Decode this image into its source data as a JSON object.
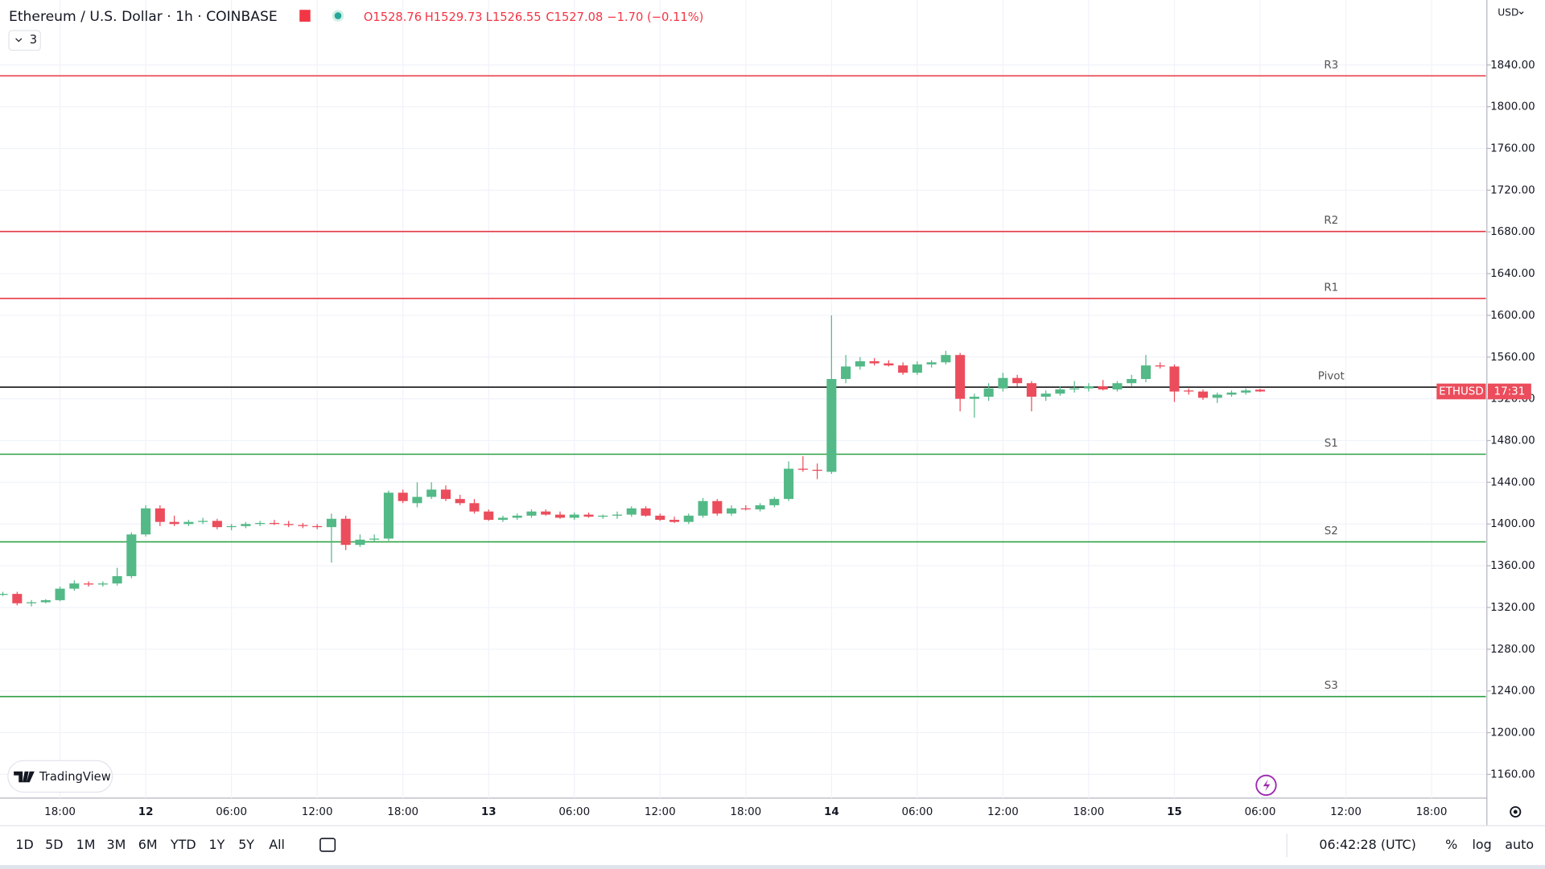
{
  "header": {
    "title": "Ethereum / U.S. Dollar · 1h · COINBASE",
    "ohlc": [
      "O1528.76",
      "H1529.73",
      "L1526.55",
      "C1527.08",
      "−1.70 (−0.11%)"
    ],
    "indicators": "3",
    "currency": "USD"
  },
  "chart_data": {
    "type": "candlestick",
    "up_color": "#53b987",
    "down_color": "#eb4d5c",
    "grid": true,
    "open": [
      1333,
      1333,
      1324,
      1325,
      1327,
      1338,
      1343,
      1342,
      1343,
      1350,
      1390,
      1415,
      1402,
      1400,
      1402,
      1403,
      1397,
      1398,
      1400,
      1401,
      1400,
      1399,
      1398,
      1397,
      1405,
      1380,
      1385,
      1386,
      1430,
      1420,
      1426,
      1433,
      1424,
      1420,
      1412,
      1404,
      1406,
      1408,
      1412,
      1409,
      1406,
      1409,
      1407,
      1408,
      1409,
      1415,
      1408,
      1404,
      1402,
      1408,
      1422,
      1410,
      1415,
      1414,
      1418,
      1424,
      1453,
      1452,
      1450,
      1539,
      1551,
      1556,
      1554,
      1552,
      1545,
      1553,
      1555,
      1562,
      1520,
      1522,
      1530,
      1540,
      1535,
      1522,
      1525,
      1529,
      1530,
      1532,
      1529,
      1535,
      1539,
      1552,
      1551,
      1528,
      1527,
      1521,
      1524,
      1526,
      1528.76
    ],
    "high": [
      1335,
      1335,
      1327,
      1328,
      1340,
      1346,
      1345,
      1345,
      1358,
      1392,
      1418,
      1418,
      1408,
      1404,
      1406,
      1405,
      1400,
      1402,
      1403,
      1404,
      1403,
      1401,
      1400,
      1410,
      1408,
      1390,
      1390,
      1432,
      1433,
      1440,
      1440,
      1437,
      1428,
      1424,
      1414,
      1408,
      1410,
      1414,
      1414,
      1412,
      1411,
      1411,
      1409,
      1412,
      1417,
      1417,
      1410,
      1407,
      1410,
      1425,
      1424,
      1418,
      1418,
      1420,
      1426,
      1460,
      1465,
      1458,
      1600,
      1562,
      1560,
      1559,
      1557,
      1555,
      1556,
      1557,
      1566,
      1564,
      1525,
      1535,
      1545,
      1543,
      1537,
      1528,
      1532,
      1537,
      1535,
      1538,
      1537,
      1543,
      1562,
      1555,
      1553,
      1530,
      1529,
      1526,
      1528,
      1530,
      1529.73
    ],
    "low": [
      1331,
      1322,
      1321,
      1324,
      1326,
      1336,
      1340,
      1340,
      1341,
      1348,
      1388,
      1398,
      1398,
      1398,
      1400,
      1395,
      1394,
      1396,
      1398,
      1399,
      1397,
      1396,
      1395,
      1363,
      1375,
      1378,
      1383,
      1384,
      1420,
      1416,
      1424,
      1422,
      1418,
      1410,
      1403,
      1402,
      1404,
      1406,
      1408,
      1405,
      1404,
      1406,
      1405,
      1405,
      1407,
      1407,
      1403,
      1401,
      1400,
      1406,
      1408,
      1408,
      1413,
      1412,
      1416,
      1422,
      1450,
      1443,
      1448,
      1535,
      1548,
      1552,
      1551,
      1543,
      1543,
      1550,
      1553,
      1508,
      1502,
      1518,
      1527,
      1532,
      1508,
      1518,
      1523,
      1526,
      1527,
      1528,
      1527,
      1532,
      1536,
      1549,
      1517,
      1524,
      1519,
      1516,
      1522,
      1524,
      1526.55
    ],
    "close": [
      1333,
      1324,
      1325,
      1327,
      1338,
      1343,
      1342,
      1343,
      1350,
      1390,
      1415,
      1402,
      1400,
      1402,
      1403,
      1397,
      1398,
      1400,
      1401,
      1400,
      1399,
      1398,
      1397,
      1405,
      1380,
      1385,
      1386,
      1430,
      1422,
      1426,
      1433,
      1424,
      1420,
      1412,
      1404,
      1406,
      1408,
      1412,
      1409,
      1406,
      1409,
      1407,
      1408,
      1409,
      1415,
      1408,
      1404,
      1402,
      1408,
      1422,
      1410,
      1415,
      1414,
      1418,
      1424,
      1453,
      1452,
      1451,
      1539,
      1551,
      1556,
      1554,
      1552,
      1545,
      1553,
      1555,
      1562,
      1520,
      1522,
      1530,
      1540,
      1535,
      1522,
      1525,
      1529,
      1530,
      1532,
      1529,
      1535,
      1539,
      1552,
      1551,
      1527,
      1527,
      1521,
      1524,
      1526,
      1528,
      1527.08
    ],
    "xlim": [
      -0.2,
      103.8
    ],
    "xticks": [
      {
        "value": 4,
        "label": "18:00"
      },
      {
        "value": 10,
        "label": "12"
      },
      {
        "value": 16,
        "label": "06:00"
      },
      {
        "value": 22,
        "label": "12:00"
      },
      {
        "value": 28,
        "label": "18:00"
      },
      {
        "value": 34,
        "label": "13"
      },
      {
        "value": 40,
        "label": "06:00"
      },
      {
        "value": 46,
        "label": "12:00"
      },
      {
        "value": 52,
        "label": "18:00"
      },
      {
        "value": 58,
        "label": "14"
      },
      {
        "value": 64,
        "label": "06:00"
      },
      {
        "value": 70,
        "label": "12:00"
      },
      {
        "value": 76,
        "label": "18:00"
      },
      {
        "value": 82,
        "label": "15"
      },
      {
        "value": 88,
        "label": "06:00"
      },
      {
        "value": 94,
        "label": "12:00"
      },
      {
        "value": 100,
        "label": "18:00"
      }
    ],
    "ylim": [
      1137.3,
      1902.3
    ],
    "yticks": [
      {
        "value": 1160,
        "label": "1160.00"
      },
      {
        "value": 1200,
        "label": "1200.00"
      },
      {
        "value": 1240,
        "label": "1240.00"
      },
      {
        "value": 1280,
        "label": "1280.00"
      },
      {
        "value": 1320,
        "label": "1320.00"
      },
      {
        "value": 1360,
        "label": "1360.00"
      },
      {
        "value": 1400,
        "label": "1400.00"
      },
      {
        "value": 1440,
        "label": "1440.00"
      },
      {
        "value": 1480,
        "label": "1480.00"
      },
      {
        "value": 1520,
        "label": "1520.00"
      },
      {
        "value": 1560,
        "label": "1560.00"
      },
      {
        "value": 1600,
        "label": "1600.00"
      },
      {
        "value": 1640,
        "label": "1640.00"
      },
      {
        "value": 1680,
        "label": "1680.00"
      },
      {
        "value": 1720,
        "label": "1720.00"
      },
      {
        "value": 1760,
        "label": "1760.00"
      },
      {
        "value": 1800,
        "label": "1800.00"
      },
      {
        "value": 1840,
        "label": "1840.00"
      }
    ],
    "levels": [
      {
        "name": "R3",
        "value": 1829.6,
        "color": "#e53945"
      },
      {
        "name": "R2",
        "value": 1680.4,
        "color": "#e53945"
      },
      {
        "name": "R1",
        "value": 1616.2,
        "color": "#e53945"
      },
      {
        "name": "Pivot",
        "value": 1531.2,
        "color": "#000000"
      },
      {
        "name": "S1",
        "value": 1466.9,
        "color": "#2ea043"
      },
      {
        "name": "S2",
        "value": 1382.9,
        "color": "#2ea043"
      },
      {
        "name": "S3",
        "value": 1234.6,
        "color": "#2ea043"
      }
    ],
    "price_tag": {
      "name": "ETHUSD",
      "countdown": "17:31"
    }
  },
  "toolbar": {
    "ranges": [
      "1D",
      "5D",
      "1M",
      "3M",
      "6M",
      "YTD",
      "1Y",
      "5Y",
      "All"
    ],
    "clock": "06:42:28 (UTC)",
    "options": [
      "%",
      "log",
      "auto"
    ]
  },
  "brand": "TradingView"
}
